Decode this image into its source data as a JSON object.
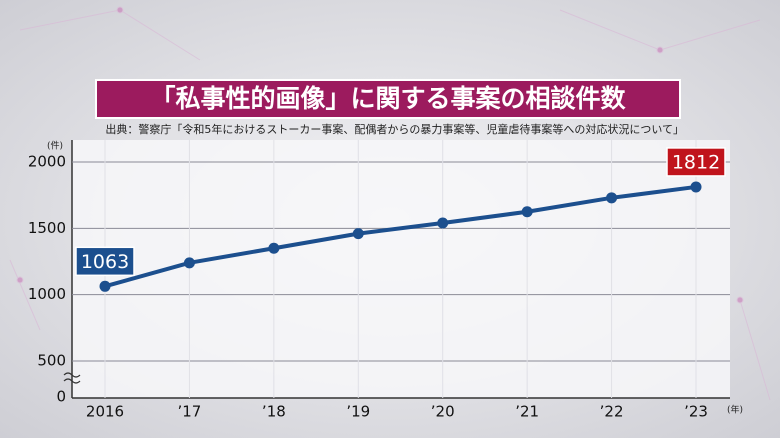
{
  "chart_data": {
    "type": "line",
    "title": "「私事性的画像」に関する事案の相談件数",
    "source": "出典：警察庁「令和5年におけるストーカー事案、配偶者からの暴力事案等、児童虐待事案等への対応状況について」",
    "y_unit": "(件)",
    "x_unit": "(年)",
    "categories": [
      "2016",
      "’17",
      "’18",
      "’19",
      "’20",
      "’21",
      "’22",
      "’23"
    ],
    "series": [
      {
        "color": "#1c4f8e",
        "values": [
          1063,
          1240,
          1350,
          1460,
          1540,
          1625,
          1730,
          1812
        ]
      }
    ],
    "labeled_points": [
      {
        "index": 0,
        "color": "#1c4f8e"
      },
      {
        "index": 7,
        "color": "#c0141c"
      }
    ],
    "ylim": [
      0,
      2000
    ],
    "yticks": [
      0,
      500,
      1000,
      1500,
      2000
    ],
    "axis_break": true,
    "grid": true
  }
}
